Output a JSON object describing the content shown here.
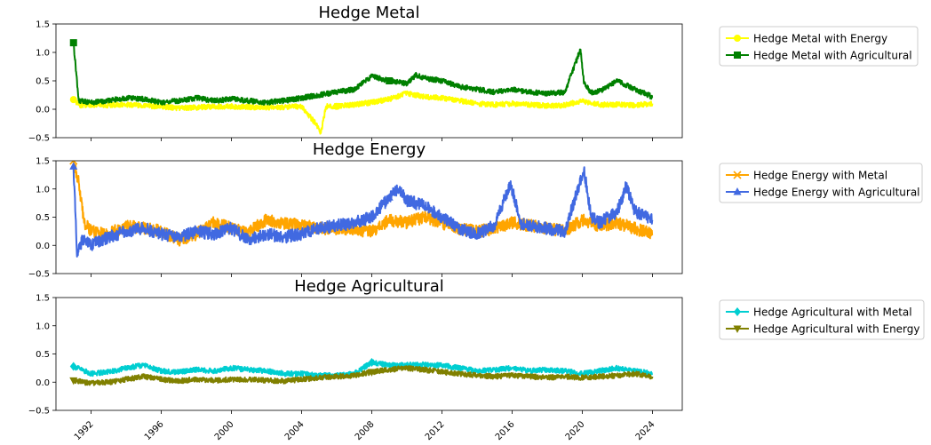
{
  "chart_data": [
    {
      "type": "line",
      "title": "Hedge Metal",
      "xlabel": "",
      "ylabel": "",
      "xlim": [
        1990.0,
        2025.7
      ],
      "ylim": [
        -0.5,
        1.5
      ],
      "yticks": [
        -0.5,
        0.0,
        0.5,
        1.0,
        1.5
      ],
      "ytick_labels": [
        "−0.5",
        "0.0",
        "0.5",
        "1.0",
        "1.5"
      ],
      "legend": "right-outside",
      "grid": false,
      "series": [
        {
          "name": "Hedge Metal with Energy",
          "color": "#ffff00",
          "marker": "circle",
          "x": [
            1991.0,
            1991.4,
            1992,
            1993,
            1994,
            1995,
            1996,
            1997,
            1998,
            1999,
            2000,
            2001,
            2002,
            2003,
            2004,
            2004.8,
            2005.1,
            2005.4,
            2006,
            2007,
            2008,
            2009,
            2010,
            2011,
            2012,
            2013,
            2014,
            2015,
            2016,
            2017,
            2018,
            2019,
            2020,
            2021,
            2022,
            2023,
            2024
          ],
          "y": [
            0.17,
            0.07,
            0.08,
            0.07,
            0.08,
            0.06,
            0.05,
            0.02,
            0.03,
            0.05,
            0.05,
            0.04,
            0.03,
            0.04,
            0.05,
            -0.25,
            -0.42,
            0.05,
            0.05,
            0.08,
            0.12,
            0.18,
            0.28,
            0.22,
            0.2,
            0.15,
            0.1,
            0.08,
            0.1,
            0.08,
            0.06,
            0.07,
            0.15,
            0.08,
            0.08,
            0.07,
            0.1
          ]
        },
        {
          "name": "Hedge Metal with Agricultural",
          "color": "#008000",
          "marker": "square",
          "x": [
            1991.0,
            1991.3,
            1992,
            1993,
            1994,
            1995,
            1996,
            1997,
            1998,
            1999,
            2000,
            2001,
            2002,
            2003,
            2004,
            2005,
            2006,
            2007,
            2008,
            2009,
            2010,
            2010.5,
            2011,
            2012,
            2013,
            2014,
            2015,
            2016,
            2017,
            2018,
            2019,
            2019.9,
            2020.1,
            2020.5,
            2021,
            2022,
            2023,
            2024
          ],
          "y": [
            1.17,
            0.15,
            0.12,
            0.15,
            0.2,
            0.18,
            0.12,
            0.15,
            0.2,
            0.15,
            0.18,
            0.15,
            0.12,
            0.15,
            0.2,
            0.25,
            0.3,
            0.35,
            0.58,
            0.5,
            0.45,
            0.6,
            0.55,
            0.5,
            0.4,
            0.35,
            0.3,
            0.35,
            0.3,
            0.28,
            0.3,
            1.05,
            0.45,
            0.3,
            0.32,
            0.5,
            0.35,
            0.22
          ]
        }
      ]
    },
    {
      "type": "line",
      "title": "Hedge Energy",
      "xlabel": "",
      "ylabel": "",
      "xlim": [
        1990.0,
        2025.7
      ],
      "ylim": [
        -0.5,
        1.5
      ],
      "yticks": [
        -0.5,
        0.0,
        0.5,
        1.0,
        1.5
      ],
      "ytick_labels": [
        "−0.5",
        "0.0",
        "0.5",
        "1.0",
        "1.5"
      ],
      "legend": "right-outside",
      "grid": false,
      "series": [
        {
          "name": "Hedge Energy with Metal",
          "color": "#ffa500",
          "marker": "x",
          "x": [
            1991.0,
            1991.3,
            1991.6,
            1992,
            1993,
            1994,
            1995,
            1996,
            1997,
            1998,
            1999,
            2000,
            2001,
            2002,
            2003,
            2004,
            2005,
            2006,
            2007,
            2008,
            2009,
            2010,
            2011,
            2012,
            2013,
            2014,
            2015,
            2016,
            2017,
            2018,
            2019,
            2020,
            2021,
            2022,
            2023,
            2024
          ],
          "y": [
            1.5,
            1.1,
            0.4,
            0.25,
            0.2,
            0.35,
            0.3,
            0.25,
            0.1,
            0.2,
            0.4,
            0.3,
            0.25,
            0.45,
            0.4,
            0.35,
            0.3,
            0.3,
            0.28,
            0.25,
            0.45,
            0.4,
            0.5,
            0.4,
            0.3,
            0.25,
            0.3,
            0.4,
            0.35,
            0.3,
            0.25,
            0.45,
            0.35,
            0.4,
            0.3,
            0.2
          ]
        },
        {
          "name": "Hedge Energy with Agricultural",
          "color": "#4169e1",
          "marker": "triangle",
          "x": [
            1991.0,
            1991.2,
            1991.5,
            1992,
            1993,
            1994,
            1995,
            1996,
            1997,
            1998,
            1999,
            2000,
            2001,
            2002,
            2003,
            2004,
            2005,
            2006,
            2007,
            2008,
            2009,
            2009.5,
            2010,
            2011,
            2012,
            2013,
            2014,
            2015,
            2015.9,
            2016.5,
            2017,
            2018,
            2019,
            2020.1,
            2020.5,
            2021,
            2022,
            2022.5,
            2023,
            2024
          ],
          "y": [
            1.4,
            -0.2,
            0.1,
            0.0,
            0.15,
            0.25,
            0.3,
            0.2,
            0.15,
            0.25,
            0.2,
            0.3,
            0.1,
            0.2,
            0.15,
            0.2,
            0.3,
            0.35,
            0.4,
            0.5,
            0.85,
            1.0,
            0.8,
            0.7,
            0.5,
            0.3,
            0.2,
            0.35,
            1.1,
            0.4,
            0.35,
            0.3,
            0.25,
            1.35,
            0.5,
            0.4,
            0.6,
            1.05,
            0.6,
            0.45
          ]
        }
      ]
    },
    {
      "type": "line",
      "title": "Hedge Agricultural",
      "xlabel": "",
      "ylabel": "",
      "xlim": [
        1990.0,
        2025.7
      ],
      "ylim": [
        -0.5,
        1.5
      ],
      "yticks": [
        -0.5,
        0.0,
        0.5,
        1.0,
        1.5
      ],
      "ytick_labels": [
        "−0.5",
        "0.0",
        "0.5",
        "1.0",
        "1.5"
      ],
      "xticks": [
        1992,
        1996,
        2000,
        2004,
        2008,
        2012,
        2016,
        2020,
        2024
      ],
      "xtick_labels": [
        "1992",
        "1996",
        "2000",
        "2004",
        "2008",
        "2012",
        "2016",
        "2020",
        "2024"
      ],
      "legend": "right-outside",
      "grid": false,
      "series": [
        {
          "name": "Hedge Agricultural with Metal",
          "color": "#00ced1",
          "marker": "diamond",
          "x": [
            1991.0,
            1992,
            1993,
            1994,
            1995,
            1996,
            1997,
            1998,
            1999,
            2000,
            2001,
            2002,
            2003,
            2004,
            2005,
            2006,
            2007,
            2008,
            2009,
            2010,
            2011,
            2012,
            2013,
            2014,
            2015,
            2016,
            2017,
            2018,
            2019,
            2020,
            2021,
            2022,
            2023,
            2024
          ],
          "y": [
            0.28,
            0.15,
            0.18,
            0.25,
            0.3,
            0.2,
            0.18,
            0.22,
            0.2,
            0.25,
            0.22,
            0.2,
            0.15,
            0.15,
            0.12,
            0.12,
            0.15,
            0.35,
            0.3,
            0.3,
            0.32,
            0.3,
            0.25,
            0.2,
            0.22,
            0.25,
            0.2,
            0.22,
            0.2,
            0.15,
            0.2,
            0.25,
            0.2,
            0.15
          ]
        },
        {
          "name": "Hedge Agricultural with Energy",
          "color": "#808000",
          "marker": "triangle-down",
          "x": [
            1991.0,
            1992,
            1993,
            1994,
            1995,
            1996,
            1997,
            1998,
            1999,
            2000,
            2001,
            2002,
            2003,
            2004,
            2005,
            2006,
            2007,
            2008,
            2009,
            2010,
            2011,
            2012,
            2013,
            2014,
            2015,
            2016,
            2017,
            2018,
            2019,
            2020,
            2021,
            2022,
            2023,
            2024
          ],
          "y": [
            0.03,
            -0.02,
            0.0,
            0.05,
            0.1,
            0.05,
            0.02,
            0.05,
            0.03,
            0.05,
            0.05,
            0.03,
            0.02,
            0.05,
            0.08,
            0.1,
            0.12,
            0.18,
            0.22,
            0.25,
            0.22,
            0.18,
            0.15,
            0.12,
            0.1,
            0.12,
            0.1,
            0.08,
            0.1,
            0.08,
            0.1,
            0.12,
            0.15,
            0.1
          ]
        }
      ]
    }
  ]
}
